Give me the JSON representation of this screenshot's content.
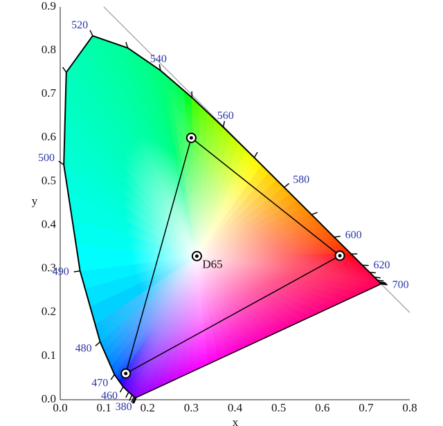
{
  "chart_data": {
    "type": "chromaticity",
    "xlabel": "x",
    "ylabel": "y",
    "xlim": [
      0,
      0.8
    ],
    "ylim": [
      0,
      0.9
    ],
    "xticks": [
      {
        "value": 0,
        "label": "0.0"
      },
      0.1,
      0.2,
      0.3,
      0.4,
      0.5,
      0.6,
      0.7,
      0.8
    ],
    "yticks": [
      {
        "value": 0,
        "label": "0.0"
      },
      0.1,
      0.2,
      0.3,
      0.4,
      0.5,
      0.6,
      0.7,
      0.8,
      0.9
    ],
    "grid": true,
    "grid_step": 0.05,
    "locus": {
      "wavelengths": [
        380,
        390,
        400,
        410,
        420,
        430,
        440,
        450,
        460,
        470,
        480,
        490,
        500,
        510,
        520,
        530,
        540,
        550,
        560,
        570,
        580,
        590,
        600,
        610,
        620,
        630,
        640,
        650,
        660,
        670,
        680,
        690,
        700
      ],
      "x": [
        0.1741,
        0.1738,
        0.1733,
        0.1726,
        0.1714,
        0.1689,
        0.1644,
        0.1566,
        0.144,
        0.1241,
        0.0913,
        0.0454,
        0.0082,
        0.0139,
        0.0743,
        0.1547,
        0.2296,
        0.3016,
        0.3731,
        0.4441,
        0.5125,
        0.5752,
        0.627,
        0.6658,
        0.6915,
        0.7079,
        0.719,
        0.726,
        0.73,
        0.732,
        0.7334,
        0.7344,
        0.7347
      ],
      "y": [
        0.005,
        0.0049,
        0.0048,
        0.0048,
        0.0051,
        0.0069,
        0.0109,
        0.0177,
        0.0297,
        0.0578,
        0.1327,
        0.295,
        0.5384,
        0.7502,
        0.8338,
        0.8059,
        0.7543,
        0.6923,
        0.6245,
        0.5547,
        0.4866,
        0.4242,
        0.3725,
        0.334,
        0.3083,
        0.292,
        0.2809,
        0.274,
        0.27,
        0.268,
        0.2666,
        0.2656,
        0.2653
      ]
    },
    "labeled_wavelengths": [
      380,
      460,
      470,
      480,
      490,
      500,
      520,
      540,
      560,
      580,
      600,
      620,
      700
    ],
    "gamut": {
      "x": [
        0.64,
        0.3,
        0.15
      ],
      "y": [
        0.33,
        0.6,
        0.06
      ]
    },
    "white_point": {
      "name": "D65",
      "x": 0.3127,
      "y": 0.329
    }
  }
}
